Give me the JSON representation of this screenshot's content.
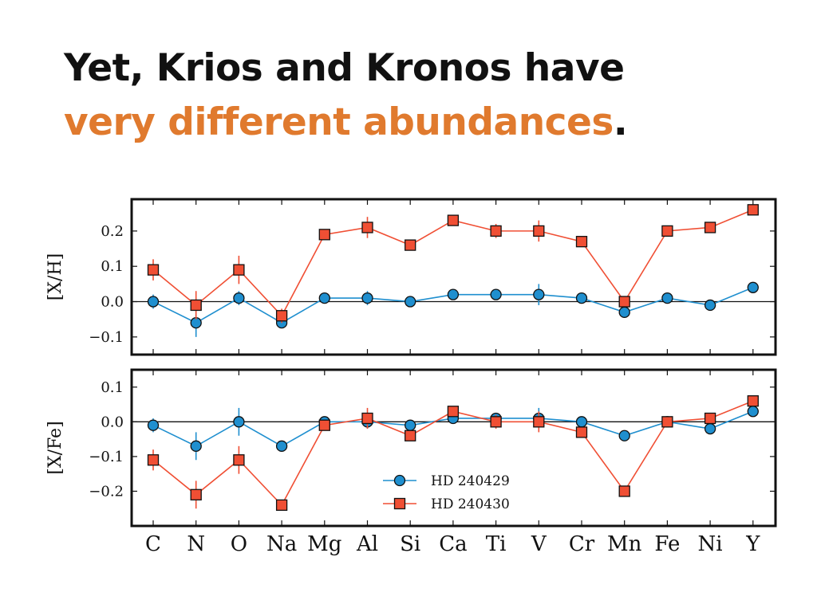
{
  "slide": {
    "title_line1": "Yet, Krios and Kronos have",
    "title_line2_highlight": "very different abundances",
    "title_line2_end": ".",
    "accent_color": "#e07a2e"
  },
  "chart_data": [
    {
      "type": "line",
      "ylabel": "[X/H]",
      "ylim": [
        -0.15,
        0.29
      ],
      "yticks": [
        0.2,
        0.1,
        0.0,
        -0.1
      ],
      "ytick_labels": [
        "0.2",
        "0.1",
        "0.0",
        "−0.1"
      ],
      "categories": [
        "C",
        "N",
        "O",
        "Na",
        "Mg",
        "Al",
        "Si",
        "Ca",
        "Ti",
        "V",
        "Cr",
        "Mn",
        "Fe",
        "Ni",
        "Y"
      ],
      "show_x_tick_labels": false,
      "zero_line": true,
      "series": [
        {
          "name": "HD 240429",
          "color": "#1f8fcf",
          "marker": "circle",
          "values": [
            0.0,
            -0.06,
            0.01,
            -0.06,
            0.01,
            0.01,
            0.0,
            0.02,
            0.02,
            0.02,
            0.01,
            -0.03,
            0.01,
            -0.01,
            0.04
          ],
          "errors": [
            0.02,
            0.04,
            0.02,
            0.01,
            0.01,
            0.02,
            0.01,
            0.01,
            0.01,
            0.03,
            0.01,
            0.01,
            0.01,
            0.01,
            0.01
          ]
        },
        {
          "name": "HD 240430",
          "color": "#f04f34",
          "marker": "square",
          "values": [
            0.09,
            -0.01,
            0.09,
            -0.04,
            0.19,
            0.21,
            0.16,
            0.23,
            0.2,
            0.2,
            0.17,
            0.0,
            0.2,
            0.21,
            0.26
          ],
          "errors": [
            0.03,
            0.04,
            0.04,
            0.02,
            0.01,
            0.03,
            0.01,
            0.01,
            0.02,
            0.03,
            0.01,
            0.01,
            0.01,
            0.01,
            0.01
          ]
        }
      ]
    },
    {
      "type": "line",
      "ylabel": "[X/Fe]",
      "ylim": [
        -0.3,
        0.15
      ],
      "yticks": [
        0.1,
        0.0,
        -0.1,
        -0.2
      ],
      "ytick_labels": [
        "0.1",
        "0.0",
        "−0.1",
        "−0.2"
      ],
      "categories": [
        "C",
        "N",
        "O",
        "Na",
        "Mg",
        "Al",
        "Si",
        "Ca",
        "Ti",
        "V",
        "Cr",
        "Mn",
        "Fe",
        "Ni",
        "Y"
      ],
      "show_x_tick_labels": true,
      "zero_line": true,
      "legend_position": "lower-center",
      "series": [
        {
          "name": "HD 240429",
          "color": "#1f8fcf",
          "marker": "circle",
          "values": [
            -0.01,
            -0.07,
            0.0,
            -0.07,
            0.0,
            0.0,
            -0.01,
            0.01,
            0.01,
            0.01,
            0.0,
            -0.04,
            0.0,
            -0.02,
            0.03
          ],
          "errors": [
            0.02,
            0.04,
            0.04,
            0.01,
            0.01,
            0.02,
            0.01,
            0.01,
            0.01,
            0.03,
            0.01,
            0.01,
            0.01,
            0.01,
            0.01
          ]
        },
        {
          "name": "HD 240430",
          "color": "#f04f34",
          "marker": "square",
          "values": [
            -0.11,
            -0.21,
            -0.11,
            -0.24,
            -0.01,
            0.01,
            -0.04,
            0.03,
            0.0,
            0.0,
            -0.03,
            -0.2,
            0.0,
            0.01,
            0.06
          ],
          "errors": [
            0.03,
            0.04,
            0.04,
            0.01,
            0.01,
            0.03,
            0.01,
            0.01,
            0.02,
            0.03,
            0.01,
            0.01,
            0.01,
            0.01,
            0.01
          ]
        }
      ]
    }
  ]
}
